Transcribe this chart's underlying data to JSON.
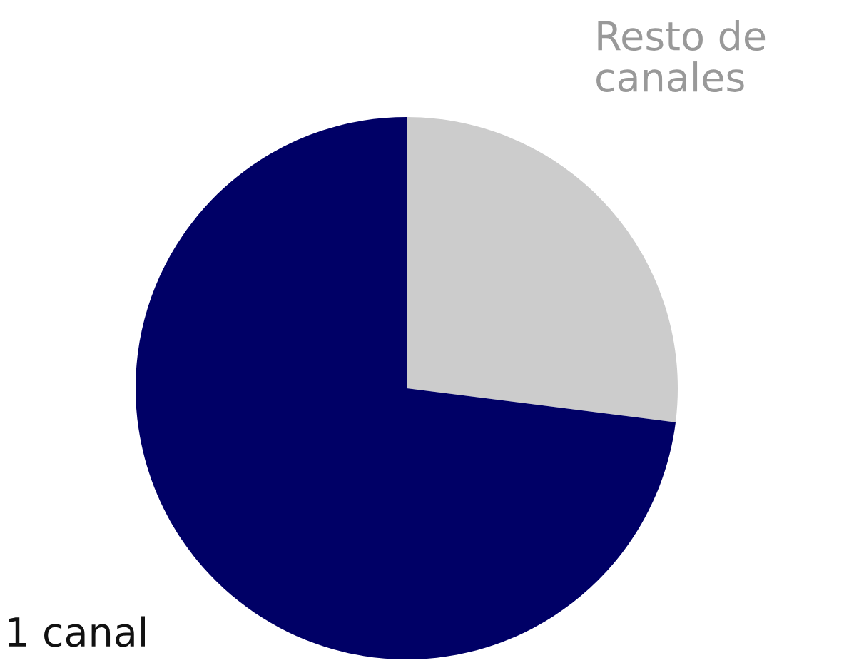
{
  "chart_data": {
    "type": "pie",
    "categories": [
      "Resto de canales",
      "1 canal"
    ],
    "values": [
      27,
      73
    ],
    "colors": [
      "#cccccc",
      "#000066"
    ],
    "legend": false
  }
}
